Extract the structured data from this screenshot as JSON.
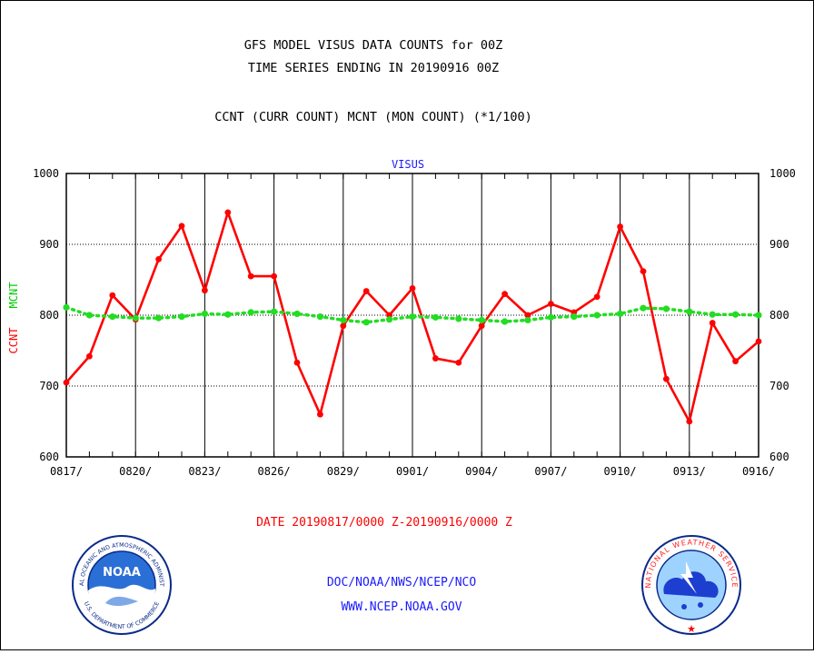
{
  "header": {
    "title_line1": "GFS MODEL VISUS DATA COUNTS for 00Z",
    "title_line2": "TIME SERIES ENDING IN 20190916 00Z",
    "subtitle": "CCNT (CURR COUNT) MCNT (MON COUNT) (*1/100)"
  },
  "footer": {
    "date_range": "DATE 20190817/0000 Z-20190916/0000 Z",
    "agency": "DOC/NOAA/NWS/NCEP/NCO",
    "url": "WWW.NCEP.NOAA.GOV"
  },
  "logos": {
    "noaa": {
      "center_text": "NOAA",
      "ring_top": "NATIONAL OCEANIC AND ATMOSPHERIC ADMINISTRATION",
      "ring_bottom": "U.S. DEPARTMENT OF COMMERCE"
    },
    "nws": {
      "ring_text": "NATIONAL WEATHER SERVICE"
    }
  },
  "colors": {
    "ccnt": "#ff0000",
    "mcnt": "#22dd22",
    "title_blue": "#1a1aff"
  },
  "chart_data": {
    "type": "line",
    "title": "VISUS",
    "ylabel_left": "CCNT",
    "ylabel_right": "MCNT",
    "ylim": [
      600,
      1000
    ],
    "yticks": [
      600,
      700,
      800,
      900,
      1000
    ],
    "x_tick_labels": [
      "0817/",
      "0820/",
      "0823/",
      "0826/",
      "0829/",
      "0901/",
      "0904/",
      "0907/",
      "0910/",
      "0913/",
      "0916/"
    ],
    "grid": true,
    "x": [
      "0817",
      "0818",
      "0819",
      "0820",
      "0821",
      "0822",
      "0823",
      "0824",
      "0825",
      "0826",
      "0827",
      "0828",
      "0829",
      "0830",
      "0831",
      "0901",
      "0902",
      "0903",
      "0904",
      "0905",
      "0906",
      "0907",
      "0908",
      "0909",
      "0910",
      "0911",
      "0912",
      "0913",
      "0914",
      "0915",
      "0916"
    ],
    "series": [
      {
        "name": "CCNT",
        "color": "#ff0000",
        "values": [
          705,
          742,
          828,
          794,
          879,
          926,
          835,
          945,
          855,
          855,
          733,
          660,
          785,
          834,
          800,
          838,
          739,
          733,
          785,
          830,
          800,
          816,
          804,
          826,
          925,
          862,
          710,
          650,
          789,
          735,
          763
        ]
      },
      {
        "name": "MCNT",
        "color": "#22dd22",
        "values": [
          811,
          800,
          798,
          796,
          796,
          798,
          802,
          801,
          804,
          805,
          802,
          798,
          793,
          790,
          794,
          798,
          797,
          795,
          793,
          791,
          793,
          797,
          798,
          800,
          802,
          810,
          809,
          805,
          801,
          801,
          800
        ]
      }
    ]
  }
}
